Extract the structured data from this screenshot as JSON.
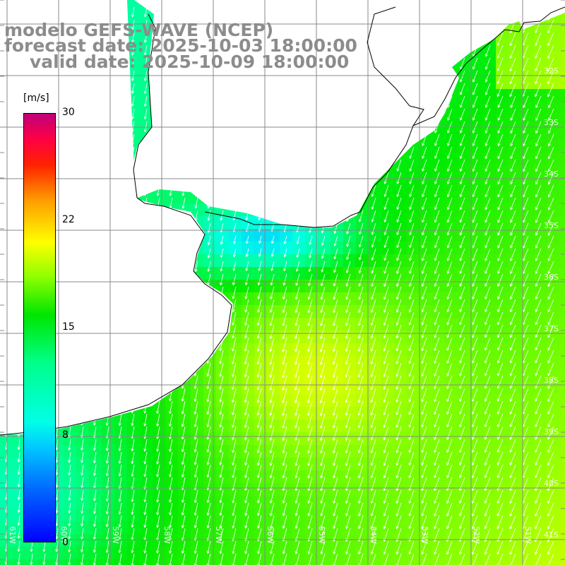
{
  "title": {
    "line1": "modelo GEFS-WAVE (NCEP)",
    "line2": "forecast date: 2025-10-03 18:00:00",
    "line3": "valid date: 2025-10-09 18:00:00"
  },
  "colorbar": {
    "unit": "[m/s]",
    "ticks": [
      "30",
      "22",
      "15",
      "8",
      "0"
    ],
    "tick_values": [
      30,
      22,
      15,
      8,
      0
    ],
    "min": 0,
    "max": 30
  },
  "map": {
    "lat_labels": [
      "32S",
      "33S",
      "34S",
      "35S",
      "36S",
      "37S",
      "38S",
      "39S",
      "40S",
      "41S"
    ],
    "lon_labels": [
      "61W",
      "60W",
      "59W",
      "58W",
      "57W",
      "56W",
      "55W",
      "54W",
      "53W",
      "52W",
      "51W"
    ],
    "land_color": "#ffffff",
    "grid_color": "#808080",
    "coast_color": "#000000",
    "vector_color": "#ffffff",
    "wind_direction": "southward to south-southwest"
  }
}
